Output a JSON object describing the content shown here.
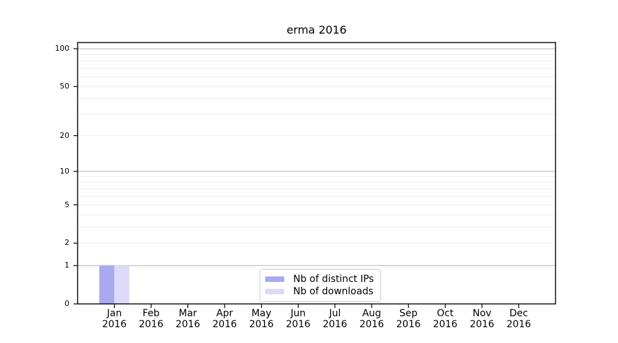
{
  "title": "erma 2016",
  "legend": {
    "items": [
      {
        "label": "Nb of distinct IPs",
        "color": "#a9a9f0"
      },
      {
        "label": "Nb of downloads",
        "color": "#dcdcf8"
      }
    ]
  },
  "chart_data": {
    "type": "bar",
    "title": "erma 2016",
    "categories": [
      {
        "month": "Jan",
        "year": "2016"
      },
      {
        "month": "Feb",
        "year": "2016"
      },
      {
        "month": "Mar",
        "year": "2016"
      },
      {
        "month": "Apr",
        "year": "2016"
      },
      {
        "month": "May",
        "year": "2016"
      },
      {
        "month": "Jun",
        "year": "2016"
      },
      {
        "month": "Jul",
        "year": "2016"
      },
      {
        "month": "Aug",
        "year": "2016"
      },
      {
        "month": "Sep",
        "year": "2016"
      },
      {
        "month": "Oct",
        "year": "2016"
      },
      {
        "month": "Nov",
        "year": "2016"
      },
      {
        "month": "Dec",
        "year": "2016"
      }
    ],
    "series": [
      {
        "name": "Nb of distinct IPs",
        "color": "#a9a9f0",
        "values": [
          1,
          0,
          0,
          0,
          0,
          0,
          0,
          0,
          0,
          0,
          0,
          0
        ]
      },
      {
        "name": "Nb of downloads",
        "color": "#dcdcf8",
        "values": [
          1,
          0,
          0,
          0,
          0,
          0,
          0,
          0,
          0,
          0,
          0,
          0
        ]
      }
    ],
    "y_scale": "log1p",
    "ylim": [
      0,
      112
    ],
    "y_tick_labels": [
      0,
      1,
      2,
      5,
      10,
      20,
      50,
      100
    ],
    "y_major_gridlines": [
      1,
      10,
      100
    ],
    "y_minor_gridlines": [
      2,
      3,
      4,
      5,
      6,
      7,
      8,
      9,
      20,
      30,
      40,
      50,
      60,
      70,
      80,
      90
    ],
    "xlabel": "",
    "ylabel": "",
    "grid": true,
    "legend_position": "bottom-center",
    "colors": {
      "major_grid": "#b3b3b3",
      "minor_grid": "#ececec",
      "axis": "#000000"
    }
  }
}
